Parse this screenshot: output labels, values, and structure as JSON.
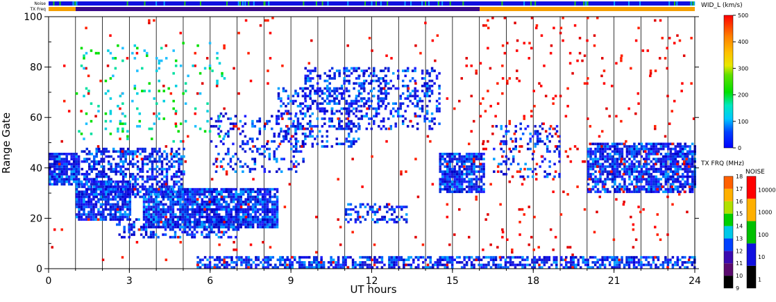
{
  "chart_data": {
    "type": "scatter",
    "xlabel": "UT hours",
    "ylabel": "Range Gate",
    "xlim": [
      0,
      24
    ],
    "ylim": [
      0,
      100
    ],
    "x_ticks": [
      "0",
      "3",
      "6",
      "9",
      "12",
      "15",
      "18",
      "21",
      "24"
    ],
    "y_ticks": [
      "0",
      "20",
      "40",
      "60",
      "80",
      "100"
    ],
    "grid": "vertical lines every hour",
    "top_strips": {
      "noise_label": "Noise",
      "txfreq_label": "TX Freq"
    },
    "colorbar_width": {
      "label": "WID_L (km/s)",
      "ticks": [
        "0",
        "100",
        "200",
        "300",
        "400",
        "500"
      ],
      "range": [
        0,
        500
      ]
    },
    "colorbar_freq": {
      "label": "TX FRQ (MHz)",
      "ticks": [
        "9",
        "10",
        "11",
        "12",
        "13",
        "14",
        "15",
        "16",
        "17",
        "18"
      ]
    },
    "colorbar_noise": {
      "label": "NOISE",
      "ticks": [
        "1",
        "10",
        "100",
        "1000",
        "10000"
      ]
    },
    "regions": [
      {
        "x0": 0.0,
        "x1": 1.1,
        "y0": 33,
        "y1": 46,
        "density": 0.85,
        "color": "blue"
      },
      {
        "x0": 1.0,
        "x1": 3.0,
        "y0": 19,
        "y1": 35,
        "density": 0.8,
        "color": "blue"
      },
      {
        "x0": 1.2,
        "x1": 5.0,
        "y0": 28,
        "y1": 48,
        "density": 0.55,
        "color": "blue"
      },
      {
        "x0": 3.5,
        "x1": 8.5,
        "y0": 16,
        "y1": 32,
        "density": 0.85,
        "color": "blue"
      },
      {
        "x0": 2.5,
        "x1": 7.0,
        "y0": 12,
        "y1": 20,
        "density": 0.35,
        "color": "blue"
      },
      {
        "x0": 6.0,
        "x1": 9.5,
        "y0": 38,
        "y1": 62,
        "density": 0.2,
        "color": "blue"
      },
      {
        "x0": 8.5,
        "x1": 11.5,
        "y0": 48,
        "y1": 72,
        "density": 0.3,
        "color": "blue"
      },
      {
        "x0": 9.5,
        "x1": 12.5,
        "y0": 62,
        "y1": 80,
        "density": 0.3,
        "color": "blue"
      },
      {
        "x0": 11.5,
        "x1": 14.5,
        "y0": 55,
        "y1": 80,
        "density": 0.3,
        "color": "blue"
      },
      {
        "x0": 11.0,
        "x1": 13.3,
        "y0": 18,
        "y1": 26,
        "density": 0.35,
        "color": "blue"
      },
      {
        "x0": 14.5,
        "x1": 16.2,
        "y0": 30,
        "y1": 46,
        "density": 0.8,
        "color": "blue"
      },
      {
        "x0": 16.5,
        "x1": 19.0,
        "y0": 36,
        "y1": 58,
        "density": 0.2,
        "color": "blue"
      },
      {
        "x0": 20.0,
        "x1": 24.0,
        "y0": 30,
        "y1": 50,
        "density": 0.75,
        "color": "blue"
      },
      {
        "x0": 5.5,
        "x1": 24.0,
        "y0": 0,
        "y1": 5,
        "density": 0.6,
        "color": "blue"
      },
      {
        "x0": 0.0,
        "x1": 24.0,
        "y0": 0,
        "y1": 100,
        "density": 0.012,
        "color": "red"
      },
      {
        "x0": 16.0,
        "x1": 24.0,
        "y0": 0,
        "y1": 100,
        "density": 0.02,
        "color": "red"
      },
      {
        "x0": 1.0,
        "x1": 6.5,
        "y0": 50,
        "y1": 90,
        "density": 0.05,
        "color": "cyan"
      }
    ]
  }
}
